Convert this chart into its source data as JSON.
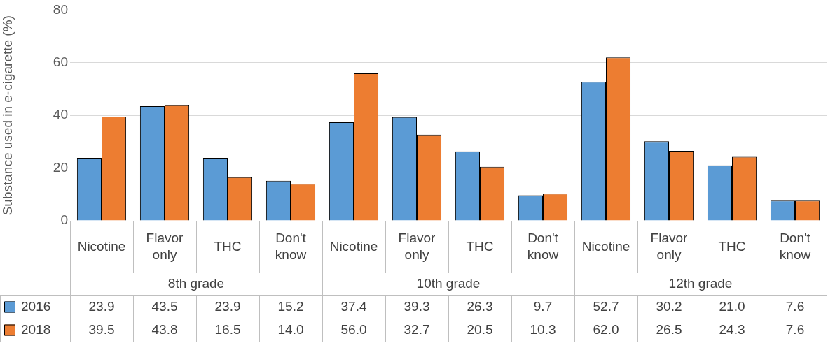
{
  "chart_data": {
    "type": "bar",
    "ylabel": "Substance used in e-cigarette (%)",
    "categories": [
      "Nicotine",
      "Flavor only",
      "THC",
      "Don't know",
      "Nicotine",
      "Flavor only",
      "THC",
      "Don't know",
      "Nicotine",
      "Flavor only",
      "THC",
      "Don't know"
    ],
    "series": [
      {
        "name": "2016",
        "color": "#5b9bd5",
        "values": [
          23.9,
          43.5,
          23.9,
          15.2,
          37.4,
          39.3,
          26.3,
          9.7,
          52.7,
          30.2,
          21.0,
          7.6
        ],
        "value_labels": [
          "23.9",
          "43.5",
          "23.9",
          "15.2",
          "37.4",
          "39.3",
          "26.3",
          "9.7",
          "52.7",
          "30.2",
          "21.0",
          "7.6"
        ]
      },
      {
        "name": "2018",
        "color": "#ed7d31",
        "values": [
          39.5,
          43.8,
          16.5,
          14.0,
          56.0,
          32.7,
          20.5,
          10.3,
          62.0,
          26.5,
          24.3,
          7.6
        ],
        "value_labels": [
          "39.5",
          "43.8",
          "16.5",
          "14.0",
          "56.0",
          "32.7",
          "20.5",
          "10.3",
          "62.0",
          "26.5",
          "24.3",
          "7.6"
        ]
      }
    ],
    "annotations": [
      "8th grade",
      "10th grade",
      "12th grade"
    ],
    "ylim": [
      0,
      80
    ],
    "yticks": [
      0,
      20,
      40,
      60,
      80
    ],
    "grid": "y",
    "legend": "bottom left"
  }
}
